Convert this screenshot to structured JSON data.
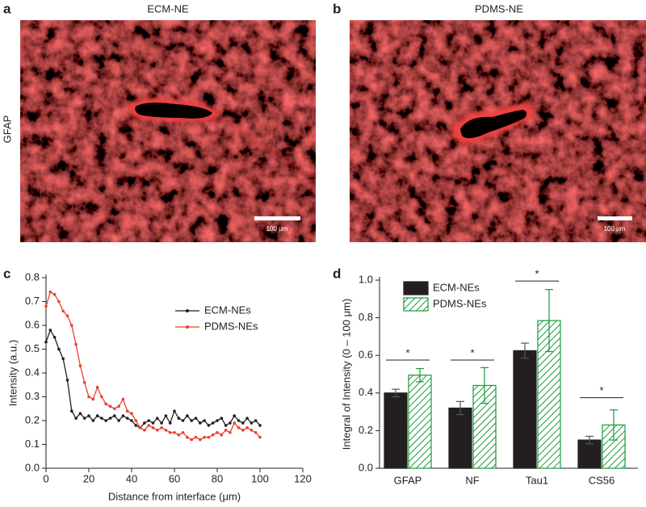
{
  "image_panels": [
    {
      "letter": "a",
      "title": "ECM-NE",
      "scale_bar": "100 μm"
    },
    {
      "letter": "b",
      "title": "PDMS-NE",
      "scale_bar": "100 μm"
    }
  ],
  "row_label": "GFAP",
  "chart_data": [
    {
      "type": "line",
      "panel_label": "c",
      "x_label": "Distance from interface (μm)",
      "y_label": "Intensity (a.u.)",
      "x": [
        0,
        2,
        4,
        6,
        8,
        10,
        12,
        14,
        16,
        18,
        20,
        22,
        24,
        26,
        28,
        30,
        32,
        34,
        36,
        38,
        40,
        42,
        44,
        46,
        48,
        50,
        52,
        54,
        56,
        58,
        60,
        62,
        64,
        66,
        68,
        70,
        72,
        74,
        76,
        78,
        80,
        82,
        84,
        86,
        88,
        90,
        92,
        94,
        96,
        98,
        100
      ],
      "series": [
        {
          "name": "ECM-NEs",
          "color": "#231f20",
          "values": [
            0.53,
            0.58,
            0.55,
            0.5,
            0.46,
            0.37,
            0.24,
            0.21,
            0.23,
            0.21,
            0.22,
            0.2,
            0.22,
            0.21,
            0.2,
            0.21,
            0.22,
            0.2,
            0.22,
            0.21,
            0.2,
            0.18,
            0.17,
            0.19,
            0.2,
            0.19,
            0.21,
            0.19,
            0.22,
            0.19,
            0.24,
            0.21,
            0.2,
            0.22,
            0.2,
            0.21,
            0.19,
            0.2,
            0.18,
            0.19,
            0.2,
            0.21,
            0.18,
            0.19,
            0.22,
            0.2,
            0.19,
            0.21,
            0.19,
            0.2,
            0.18
          ]
        },
        {
          "name": "PDMS-NEs",
          "color": "#e8412c",
          "values": [
            0.68,
            0.74,
            0.73,
            0.7,
            0.66,
            0.64,
            0.6,
            0.52,
            0.43,
            0.36,
            0.3,
            0.29,
            0.34,
            0.3,
            0.27,
            0.26,
            0.25,
            0.26,
            0.29,
            0.24,
            0.23,
            0.2,
            0.17,
            0.16,
            0.18,
            0.17,
            0.16,
            0.17,
            0.16,
            0.15,
            0.15,
            0.14,
            0.15,
            0.13,
            0.12,
            0.13,
            0.12,
            0.13,
            0.13,
            0.14,
            0.15,
            0.14,
            0.16,
            0.15,
            0.19,
            0.17,
            0.16,
            0.17,
            0.16,
            0.15,
            0.13
          ]
        }
      ],
      "xlim": [
        0,
        120
      ],
      "xticks": [
        0,
        20,
        40,
        60,
        80,
        100,
        120
      ],
      "ylim": [
        0,
        0.8
      ],
      "yticks": [
        {
          "value": 0,
          "label": "0.0"
        },
        0.1,
        0.2,
        0.3,
        0.4,
        0.5,
        0.6,
        0.7,
        0.8
      ],
      "legend": "upper right"
    },
    {
      "type": "bar",
      "panel_label": "d",
      "y_label": "Integral of Intensity (0 – 100 μm)",
      "categories": [
        "GFAP",
        "NF",
        "Tau1",
        "CS56"
      ],
      "series": [
        {
          "name": "ECM-NEs",
          "color": "#231f20",
          "hatch": false,
          "values": [
            0.4,
            0.32,
            0.625,
            0.15
          ],
          "errors": [
            0.02,
            0.035,
            0.04,
            0.02
          ]
        },
        {
          "name": "PDMS-NEs",
          "color": "#1a9a3a",
          "hatch": true,
          "values": [
            0.495,
            0.44,
            0.785,
            0.23
          ],
          "errors": [
            0.035,
            0.095,
            0.165,
            0.08
          ]
        }
      ],
      "ylim": [
        0,
        1.0
      ],
      "yticks": [
        {
          "value": 0,
          "label": "0.0"
        },
        0.2,
        0.4,
        0.6,
        0.8,
        {
          "value": 1.0,
          "label": "1.0"
        }
      ],
      "significance": [
        {
          "label": "*",
          "category": 0,
          "y": 0.575
        },
        {
          "label": "*",
          "category": 1,
          "y": 0.575
        },
        {
          "label": "*",
          "category": 2,
          "y": 0.995
        },
        {
          "label": "*",
          "category": 3,
          "y": 0.375
        }
      ],
      "legend": "upper left"
    }
  ]
}
